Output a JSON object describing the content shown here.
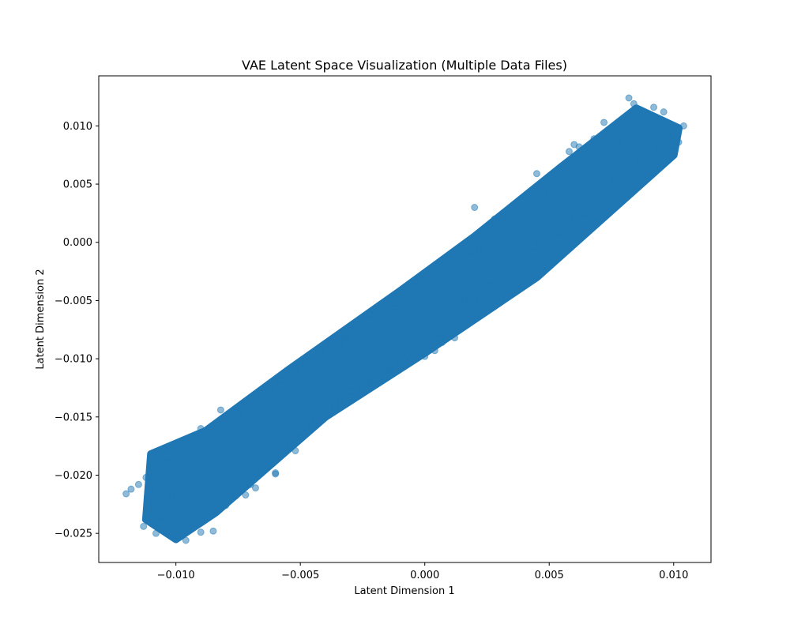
{
  "chart_data": {
    "type": "scatter",
    "title": "VAE Latent Space Visualization (Multiple Data Files)",
    "xlabel": "Latent Dimension 1",
    "ylabel": "Latent Dimension 2",
    "xlim": [
      -0.0131,
      0.0115
    ],
    "ylim": [
      -0.0275,
      0.0143
    ],
    "xticks": [
      -0.01,
      -0.005,
      0.0,
      0.005,
      0.01
    ],
    "yticks": [
      -0.025,
      -0.02,
      -0.015,
      -0.01,
      -0.005,
      0.0,
      0.005,
      0.01
    ],
    "xtick_labels": [
      "−0.010",
      "−0.005",
      "0.000",
      "0.005",
      "0.010"
    ],
    "ytick_labels": [
      "−0.025",
      "−0.020",
      "−0.015",
      "−0.010",
      "−0.005",
      "0.000",
      "0.005",
      "0.010"
    ],
    "grid": false,
    "marker_color": "#1f77b4",
    "marker_alpha": 0.5,
    "series": [
      {
        "values": [
          [
            -0.012,
            -0.0216
          ],
          [
            -0.0118,
            -0.0212
          ],
          [
            -0.0115,
            -0.0208
          ],
          [
            -0.0112,
            -0.0202
          ],
          [
            -0.0113,
            -0.0244
          ],
          [
            -0.0111,
            -0.0228
          ],
          [
            -0.0108,
            -0.025
          ],
          [
            -0.0106,
            -0.0236
          ],
          [
            -0.0104,
            -0.019
          ],
          [
            -0.0102,
            -0.0218
          ],
          [
            -0.01,
            -0.0252
          ],
          [
            -0.0098,
            -0.0246
          ],
          [
            -0.0096,
            -0.0256
          ],
          [
            -0.0094,
            -0.0178
          ],
          [
            -0.0092,
            -0.0236
          ],
          [
            -0.009,
            -0.0249
          ],
          [
            -0.0088,
            -0.0166
          ],
          [
            -0.0086,
            -0.0232
          ],
          [
            -0.0084,
            -0.02
          ],
          [
            -0.0082,
            -0.0144
          ],
          [
            -0.008,
            -0.0226
          ],
          [
            -0.0078,
            -0.015
          ],
          [
            -0.0076,
            -0.0218
          ],
          [
            -0.0074,
            -0.0204
          ],
          [
            -0.0072,
            -0.014
          ],
          [
            -0.007,
            -0.0208
          ],
          [
            -0.0068,
            -0.0131
          ],
          [
            -0.0066,
            -0.0196
          ],
          [
            -0.0064,
            -0.0192
          ],
          [
            -0.0062,
            -0.0126
          ],
          [
            -0.006,
            -0.0198
          ],
          [
            -0.0058,
            -0.0118
          ],
          [
            -0.0056,
            -0.0178
          ],
          [
            -0.0054,
            -0.0172
          ],
          [
            -0.0052,
            -0.011
          ],
          [
            -0.005,
            -0.0168
          ],
          [
            -0.0048,
            -0.0103
          ],
          [
            -0.0046,
            -0.016
          ],
          [
            -0.0044,
            -0.0154
          ],
          [
            -0.0042,
            -0.0094
          ],
          [
            -0.004,
            -0.015
          ],
          [
            -0.0038,
            -0.0086
          ],
          [
            -0.0036,
            -0.0142
          ],
          [
            -0.0034,
            -0.0136
          ],
          [
            -0.0032,
            -0.0082
          ],
          [
            -0.003,
            -0.0128
          ],
          [
            -0.0028,
            -0.0074
          ],
          [
            -0.0026,
            -0.0126
          ],
          [
            -0.0024,
            -0.012
          ],
          [
            -0.0022,
            -0.0062
          ],
          [
            -0.002,
            -0.0118
          ],
          [
            -0.0018,
            -0.006
          ],
          [
            -0.0016,
            -0.0107
          ],
          [
            -0.0014,
            -0.011
          ],
          [
            -0.0012,
            -0.0052
          ],
          [
            -0.001,
            -0.0104
          ],
          [
            -0.0008,
            -0.0046
          ],
          [
            -0.0006,
            -0.01
          ],
          [
            -0.0004,
            -0.0096
          ],
          [
            -0.0002,
            -0.0032
          ],
          [
            0.0,
            -0.0098
          ],
          [
            0.0002,
            -0.003
          ],
          [
            0.0004,
            -0.0086
          ],
          [
            0.0006,
            -0.0082
          ],
          [
            0.0008,
            -0.0018
          ],
          [
            0.001,
            -0.0075
          ],
          [
            0.0012,
            -0.0016
          ],
          [
            0.0014,
            -0.006
          ],
          [
            0.0016,
            -0.005
          ],
          [
            0.0018,
            -0.0008
          ],
          [
            0.002,
            -0.0052
          ],
          [
            0.0022,
            -0.0006
          ],
          [
            0.0024,
            -0.0045
          ],
          [
            0.0026,
            -0.0038
          ],
          [
            0.0028,
            0.002
          ],
          [
            0.003,
            -0.0032
          ],
          [
            0.0032,
            0.0008
          ],
          [
            0.0034,
            -0.0026
          ],
          [
            0.0036,
            -0.002
          ],
          [
            0.0038,
            0.003
          ],
          [
            0.004,
            -0.002
          ],
          [
            0.0042,
            0.0035
          ],
          [
            0.0044,
            -0.0004
          ],
          [
            0.0046,
            0.0
          ],
          [
            0.0048,
            0.0043
          ],
          [
            0.005,
            0.0002
          ],
          [
            0.0052,
            0.0045
          ],
          [
            0.0054,
            0.0008
          ],
          [
            0.0056,
            0.0012
          ],
          [
            0.0058,
            0.0078
          ],
          [
            0.006,
            0.002
          ],
          [
            0.0062,
            0.0082
          ],
          [
            0.0064,
            0.0025
          ],
          [
            0.0066,
            0.003
          ],
          [
            0.0068,
            0.0089
          ],
          [
            0.007,
            0.004
          ],
          [
            0.0072,
            0.0103
          ],
          [
            0.0074,
            0.0046
          ],
          [
            0.0076,
            0.0052
          ],
          [
            0.0078,
            0.0086
          ],
          [
            0.008,
            0.006
          ],
          [
            0.0082,
            0.0124
          ],
          [
            0.0084,
            0.0119
          ],
          [
            0.0086,
            0.007
          ],
          [
            0.0088,
            0.0095
          ],
          [
            0.009,
            0.0076
          ],
          [
            0.0092,
            0.0116
          ],
          [
            0.0094,
            0.008
          ],
          [
            0.0096,
            0.0112
          ],
          [
            0.0098,
            0.0092
          ],
          [
            0.01,
            0.0083
          ],
          [
            0.0102,
            0.0086
          ],
          [
            0.0104,
            0.01
          ],
          [
            0.006,
            0.0084
          ],
          [
            0.0045,
            0.0059
          ],
          [
            0.0031,
            0.002
          ],
          [
            0.002,
            0.003
          ],
          [
            0.0012,
            -0.0082
          ],
          [
            0.0007,
            -0.0086
          ],
          [
            0.0004,
            -0.0093
          ],
          [
            -0.0007,
            -0.0095
          ],
          [
            -0.0015,
            -0.01
          ],
          [
            -0.0028,
            -0.0123
          ],
          [
            -0.0047,
            -0.0163
          ],
          [
            -0.0052,
            -0.0179
          ],
          [
            -0.006,
            -0.0199
          ],
          [
            -0.0068,
            -0.0211
          ],
          [
            -0.0072,
            -0.0217
          ],
          [
            -0.0085,
            -0.0248
          ],
          [
            -0.0095,
            -0.0245
          ],
          [
            -0.009,
            -0.016
          ],
          [
            -0.0075,
            -0.0147
          ],
          [
            -0.0034,
            -0.0088
          ],
          [
            -0.0019,
            -0.0056
          ]
        ]
      }
    ]
  }
}
